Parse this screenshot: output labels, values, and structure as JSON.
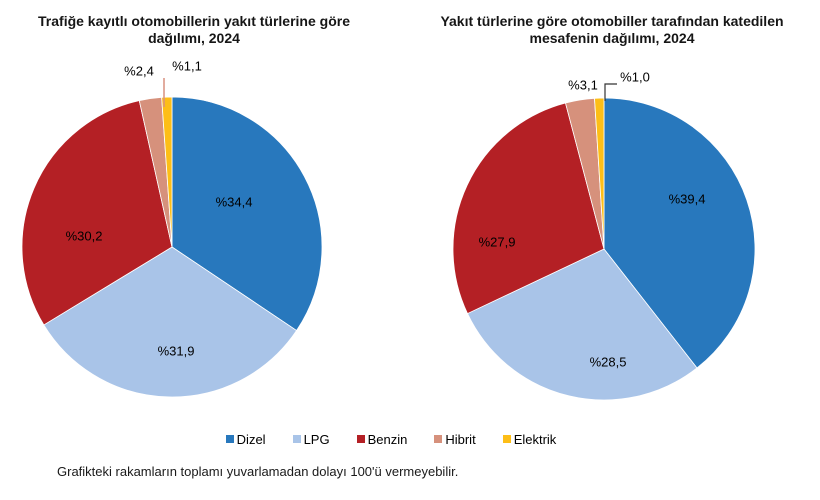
{
  "page": {
    "background": "#FFFFFF",
    "footnote": "Grafikteki rakamların toplamı yuvarlamadan dolayı 100'ü vermeyebilir."
  },
  "chart_data": [
    {
      "type": "pie",
      "title": "Trafiğe kayıtlı otomobillerin yakıt türlerine göre dağılımı, 2024",
      "title_lines": [
        "Trafiğe kayıtlı otomobillerin yakıt türlerine göre",
        "dağılımı, 2024"
      ],
      "categories": [
        "Dizel",
        "LPG",
        "Benzin",
        "Hibrit",
        "Elektrik"
      ],
      "values": [
        34.4,
        31.9,
        30.2,
        2.4,
        1.1
      ],
      "value_labels": [
        "%34,4",
        "%31,9",
        "%30,2",
        "%2,4",
        "%1,1"
      ],
      "colors": [
        "#2878BD",
        "#A9C4E8",
        "#B42025",
        "#D6917C",
        "#FDBE17"
      ],
      "start_angle_deg": 0,
      "direction": "clockwise",
      "legend_position": "bottom-shared"
    },
    {
      "type": "pie",
      "title": "Yakıt türlerine göre otomobiller tarafından katedilen mesafenin dağılımı, 2024",
      "title_lines": [
        "Yakıt türlerine göre otomobiller tarafından katedilen",
        "mesafenin dağılımı, 2024"
      ],
      "categories": [
        "Dizel",
        "LPG",
        "Benzin",
        "Hibrit",
        "Elektrik"
      ],
      "values": [
        39.4,
        28.5,
        27.9,
        3.1,
        1.0
      ],
      "value_labels": [
        "%39,4",
        "%28,5",
        "%27,9",
        "%3,1",
        "%1,0"
      ],
      "colors": [
        "#2878BD",
        "#A9C4E8",
        "#B42025",
        "#D6917C",
        "#FDBE17"
      ],
      "start_angle_deg": 0,
      "direction": "clockwise",
      "legend_position": "bottom-shared"
    }
  ],
  "legend": {
    "items": [
      {
        "label": "Dizel",
        "color": "#2878BD"
      },
      {
        "label": "LPG",
        "color": "#A9C4E8"
      },
      {
        "label": "Benzin",
        "color": "#B42025"
      },
      {
        "label": "Hibrit",
        "color": "#D6917C"
      },
      {
        "label": "Elektrik",
        "color": "#FDBE17"
      }
    ]
  }
}
